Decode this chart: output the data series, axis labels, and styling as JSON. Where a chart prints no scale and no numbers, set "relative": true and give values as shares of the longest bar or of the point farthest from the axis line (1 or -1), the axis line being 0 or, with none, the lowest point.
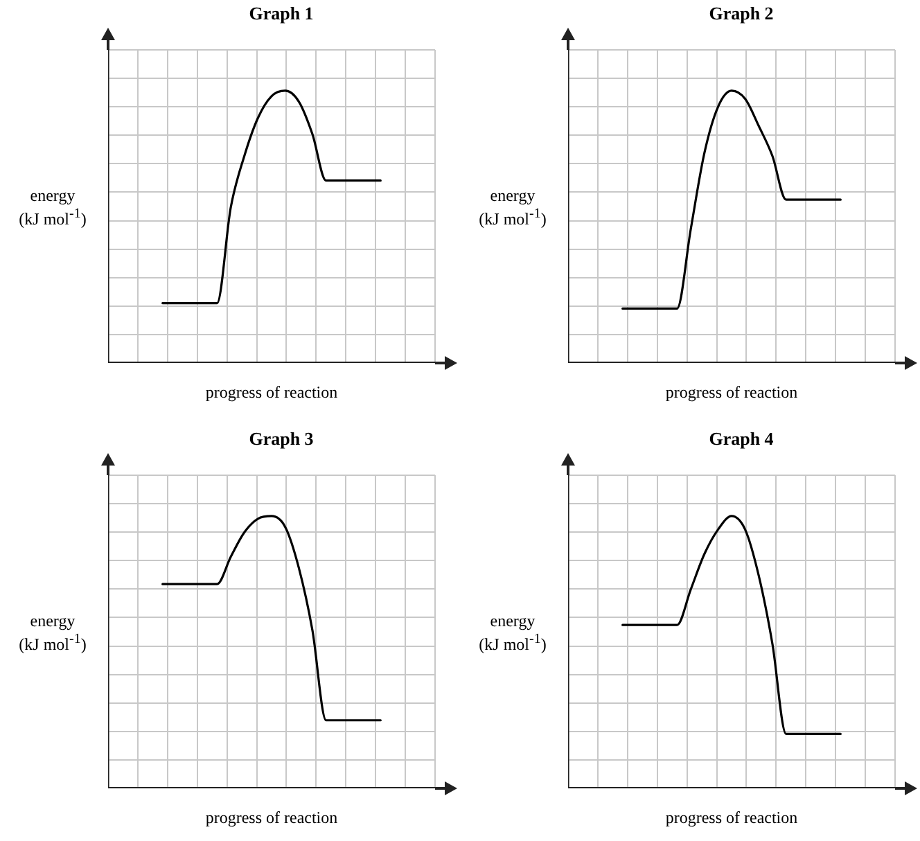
{
  "chart_data": [
    {
      "type": "line",
      "title": "Graph 1",
      "xlabel": "progress of reaction",
      "ylabel": "energy\n(kJ mol$^{-1}$)",
      "relative": true,
      "grid": true,
      "tick_labels": false,
      "legend": false,
      "marker": "none",
      "line_style": "solid",
      "categories": [
        null,
        null,
        null,
        null,
        null,
        null,
        null,
        null,
        null,
        null,
        null,
        null,
        null,
        null,
        null,
        null,
        null
      ],
      "series": [
        {
          "color": "#000000",
          "values": [
            0.22,
            0.22,
            0.22,
            0.22,
            0.22,
            0.57,
            0.76,
            0.9,
            0.98,
            1,
            0.96,
            0.84,
            0.67,
            0.67,
            0.67,
            0.67,
            0.67
          ]
        }
      ]
    },
    {
      "type": "line",
      "title": "Graph 2",
      "xlabel": "progress of reaction",
      "ylabel": "energy\n(kJ mol$^{-1}$)",
      "relative": true,
      "grid": true,
      "tick_labels": false,
      "legend": false,
      "marker": "none",
      "line_style": "solid",
      "categories": [
        null,
        null,
        null,
        null,
        null,
        null,
        null,
        null,
        null,
        null,
        null,
        null,
        null,
        null,
        null,
        null,
        null
      ],
      "series": [
        {
          "color": "#000000",
          "values": [
            0.2,
            0.2,
            0.2,
            0.2,
            0.2,
            0.49,
            0.77,
            0.94,
            1,
            0.97,
            0.87,
            0.76,
            0.6,
            0.6,
            0.6,
            0.6,
            0.6
          ]
        }
      ]
    },
    {
      "type": "line",
      "title": "Graph 3",
      "xlabel": "progress of reaction",
      "ylabel": "energy\n(kJ mol$^{-1}$)",
      "relative": true,
      "grid": true,
      "tick_labels": false,
      "legend": false,
      "marker": "none",
      "line_style": "solid",
      "categories": [
        null,
        null,
        null,
        null,
        null,
        null,
        null,
        null,
        null,
        null,
        null,
        null,
        null,
        null,
        null,
        null,
        null
      ],
      "series": [
        {
          "color": "#000000",
          "values": [
            0.75,
            0.75,
            0.75,
            0.75,
            0.75,
            0.85,
            0.94,
            0.99,
            1,
            0.96,
            0.81,
            0.58,
            0.25,
            0.25,
            0.25,
            0.25,
            0.25
          ]
        }
      ]
    },
    {
      "type": "line",
      "title": "Graph 4",
      "xlabel": "progress of reaction",
      "ylabel": "energy\n(kJ mol$^{-1}$)",
      "relative": true,
      "grid": true,
      "tick_labels": false,
      "legend": false,
      "marker": "none",
      "line_style": "solid",
      "categories": [
        null,
        null,
        null,
        null,
        null,
        null,
        null,
        null,
        null,
        null,
        null,
        null,
        null,
        null,
        null,
        null,
        null
      ],
      "series": [
        {
          "color": "#000000",
          "values": [
            0.6,
            0.6,
            0.6,
            0.6,
            0.6,
            0.73,
            0.86,
            0.95,
            1,
            0.95,
            0.78,
            0.53,
            0.2,
            0.2,
            0.2,
            0.2,
            0.2
          ]
        }
      ]
    }
  ]
}
